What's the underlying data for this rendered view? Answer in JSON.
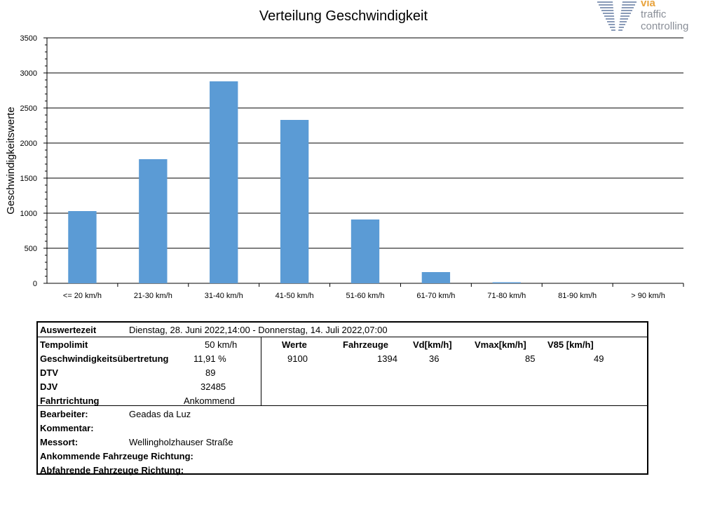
{
  "chart_data": {
    "type": "bar",
    "title": "Verteilung Geschwindigkeit",
    "ylabel": "Geschwindigkeitswerte",
    "xlabel": "",
    "categories": [
      "<= 20 km/h",
      "21-30 km/h",
      "31-40 km/h",
      "41-50 km/h",
      "51-60 km/h",
      "61-70 km/h",
      "71-80 km/h",
      "81-90 km/h",
      "> 90 km/h"
    ],
    "values": [
      1030,
      1770,
      2880,
      2330,
      910,
      160,
      15,
      0,
      0
    ],
    "ylim": [
      0,
      3500
    ],
    "yticks": [
      0,
      500,
      1000,
      1500,
      2000,
      2500,
      3000,
      3500
    ],
    "grid": true,
    "bar_color": "#5b9bd5"
  },
  "logo": {
    "line_top": "via",
    "line_mid": "traffic",
    "line_bottom": "controlling"
  },
  "table": {
    "auswertezeit_label": "Auswertezeit",
    "auswertezeit_value": "Dienstag, 28. Juni 2022,14:00  -  Donnerstag, 14. Juli 2022,07:00",
    "tempolimit_label": "Tempolimit",
    "tempolimit_value": "50  km/h",
    "uebertretung_label": "Geschwindigkeitsübertretung",
    "uebertretung_value": "11,91 %",
    "dtv_label": "DTV",
    "dtv_value": "89",
    "djv_label": "DJV",
    "djv_value": "32485",
    "fahrtrichtung_label": "Fahrtrichtung",
    "fahrtrichtung_value": "Ankommend",
    "stats_headers": [
      "Werte",
      "Fahrzeuge",
      "Vd[km/h]",
      "Vmax[km/h]",
      "V85 [km/h]"
    ],
    "stats_values": [
      "9100",
      "1394",
      "36",
      "85",
      "49"
    ],
    "bearbeiter_label": "Bearbeiter:",
    "bearbeiter_value": "Geadas da Luz",
    "kommentar_label": "Kommentar:",
    "messort_label": "Messort:",
    "messort_value": "Wellingholzhauser Straße",
    "ankommend_label": "Ankommende Fahrzeuge Richtung:",
    "abfahrend_label": "Abfahrende Fahrzeuge Richtung:"
  }
}
